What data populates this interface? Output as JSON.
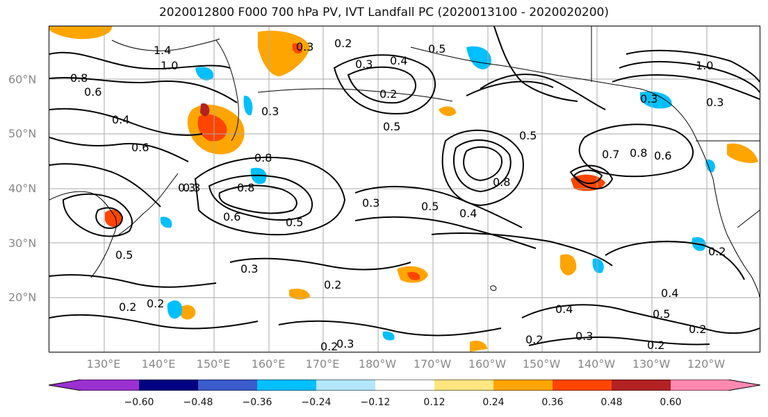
{
  "title": "2020012800 F000 700 hPa PV, IVT Landfall PC (2020013100 - 2020020200)",
  "lat_labels": [
    "60°N",
    "50°N",
    "40°N",
    "30°N",
    "20°N"
  ],
  "lon_labels": [
    "130°E",
    "140°E",
    "150°E",
    "160°E",
    "170°E",
    "180°W",
    "170°W",
    "160°W",
    "150°W",
    "140°W",
    "130°W",
    "120°W"
  ],
  "colorbar": {
    "ticks": [
      "−0.60",
      "−0.48",
      "−0.36",
      "−0.24",
      "−0.12",
      "0.12",
      "0.24",
      "0.36",
      "0.48",
      "0.60"
    ],
    "colors": [
      "#9b30d0",
      "#000080",
      "#3a5bcc",
      "#00bfff",
      "#b3e5fc",
      "#ffffff",
      "#ffe680",
      "#ffa500",
      "#ff4500",
      "#b22222",
      "#ff88b0"
    ]
  },
  "contour_labels": [
    "0.8",
    "0.6",
    "1.0",
    "1.4",
    "0.8",
    "0.6",
    "0.4",
    "0.6",
    "0.3",
    "0.3",
    "0.2",
    "0.5",
    "0.3",
    "0.4",
    "0.2",
    "0.5",
    "0.5",
    "0.8",
    "0.3",
    "0.5",
    "0.3",
    "0.8",
    "0.5",
    "0.3",
    "0.5",
    "0.4",
    "0.7",
    "0.8",
    "0.6",
    "0.3",
    "0.3",
    "0.3",
    "0.2",
    "0.4",
    "0.2",
    "0.2",
    "0.2",
    "0.4",
    "0.5",
    "0.2",
    "0.2",
    "0.3",
    "0.2",
    "0.3",
    "0.2",
    "1.0"
  ]
}
